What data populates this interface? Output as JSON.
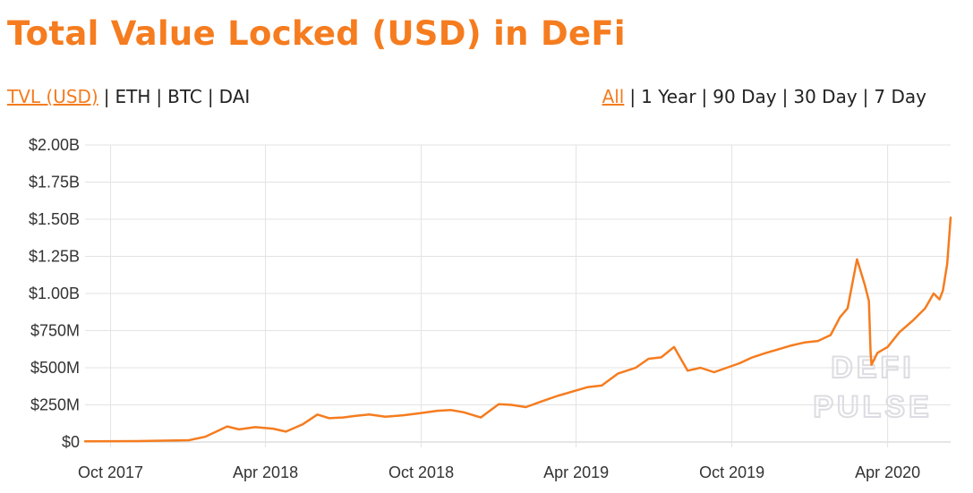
{
  "title": "Total Value Locked (USD) in DeFi",
  "metric_tabs": [
    "TVL (USD)",
    "ETH",
    "BTC",
    "DAI"
  ],
  "active_metric": "TVL (USD)",
  "range_tabs": [
    "All",
    "1 Year",
    "90 Day",
    "30 Day",
    "7 Day"
  ],
  "active_range": "All",
  "separator": "|",
  "watermark": [
    "DEFI",
    "PULSE"
  ],
  "colors": {
    "accent": "#f57c1f",
    "line": "#f57c1f",
    "grid": "#e3e3e3",
    "watermark": "#dcdce2"
  },
  "chart_data": {
    "type": "line",
    "title": "",
    "xlabel": "",
    "ylabel": "",
    "x_ticks": [
      "Oct 2017",
      "Apr 2018",
      "Oct 2018",
      "Apr 2019",
      "Oct 2019",
      "Apr 2020"
    ],
    "y_ticks": [
      "$0",
      "$250M",
      "$500M",
      "$750M",
      "$1.00B",
      "$1.25B",
      "$1.50B",
      "$1.75B",
      "$2.00B"
    ],
    "ylim": [
      0,
      2000000000
    ],
    "xlim": [
      "2017-09-01",
      "2020-06-14"
    ],
    "grid": true,
    "legend": "none",
    "series": [
      {
        "x": [
          "2017-09-01",
          "2017-11-01",
          "2018-01-01",
          "2018-01-20",
          "2018-02-15",
          "2018-03-01",
          "2018-03-20",
          "2018-04-10",
          "2018-04-25",
          "2018-05-15",
          "2018-06-01",
          "2018-06-15",
          "2018-07-01",
          "2018-07-15",
          "2018-08-01",
          "2018-08-20",
          "2018-09-10",
          "2018-10-01",
          "2018-10-20",
          "2018-11-05",
          "2018-11-20",
          "2018-12-10",
          "2018-12-31",
          "2019-01-15",
          "2019-02-01",
          "2019-02-20",
          "2019-03-10",
          "2019-03-31",
          "2019-04-15",
          "2019-05-01",
          "2019-05-20",
          "2019-06-10",
          "2019-06-25",
          "2019-07-10",
          "2019-07-25",
          "2019-08-10",
          "2019-08-25",
          "2019-09-10",
          "2019-09-25",
          "2019-10-10",
          "2019-10-25",
          "2019-11-10",
          "2019-11-25",
          "2019-12-10",
          "2019-12-25",
          "2020-01-10",
          "2020-01-25",
          "2020-02-05",
          "2020-02-14",
          "2020-02-25",
          "2020-03-05",
          "2020-03-10",
          "2020-03-12",
          "2020-03-13",
          "2020-03-20",
          "2020-04-01",
          "2020-04-15",
          "2020-05-01",
          "2020-05-15",
          "2020-05-25",
          "2020-06-01",
          "2020-06-05",
          "2020-06-10",
          "2020-06-14"
        ],
        "y": [
          5000000,
          6000000,
          12000000,
          35000000,
          105000000,
          85000000,
          100000000,
          90000000,
          70000000,
          120000000,
          185000000,
          160000000,
          165000000,
          175000000,
          185000000,
          170000000,
          180000000,
          195000000,
          210000000,
          215000000,
          200000000,
          165000000,
          255000000,
          250000000,
          235000000,
          275000000,
          310000000,
          345000000,
          370000000,
          380000000,
          460000000,
          500000000,
          560000000,
          570000000,
          640000000,
          480000000,
          500000000,
          470000000,
          500000000,
          530000000,
          570000000,
          600000000,
          625000000,
          650000000,
          670000000,
          680000000,
          720000000,
          840000000,
          900000000,
          1230000000,
          1060000000,
          950000000,
          600000000,
          520000000,
          600000000,
          640000000,
          740000000,
          820000000,
          900000000,
          1000000000,
          960000000,
          1020000000,
          1200000000,
          1510000000
        ]
      }
    ]
  }
}
